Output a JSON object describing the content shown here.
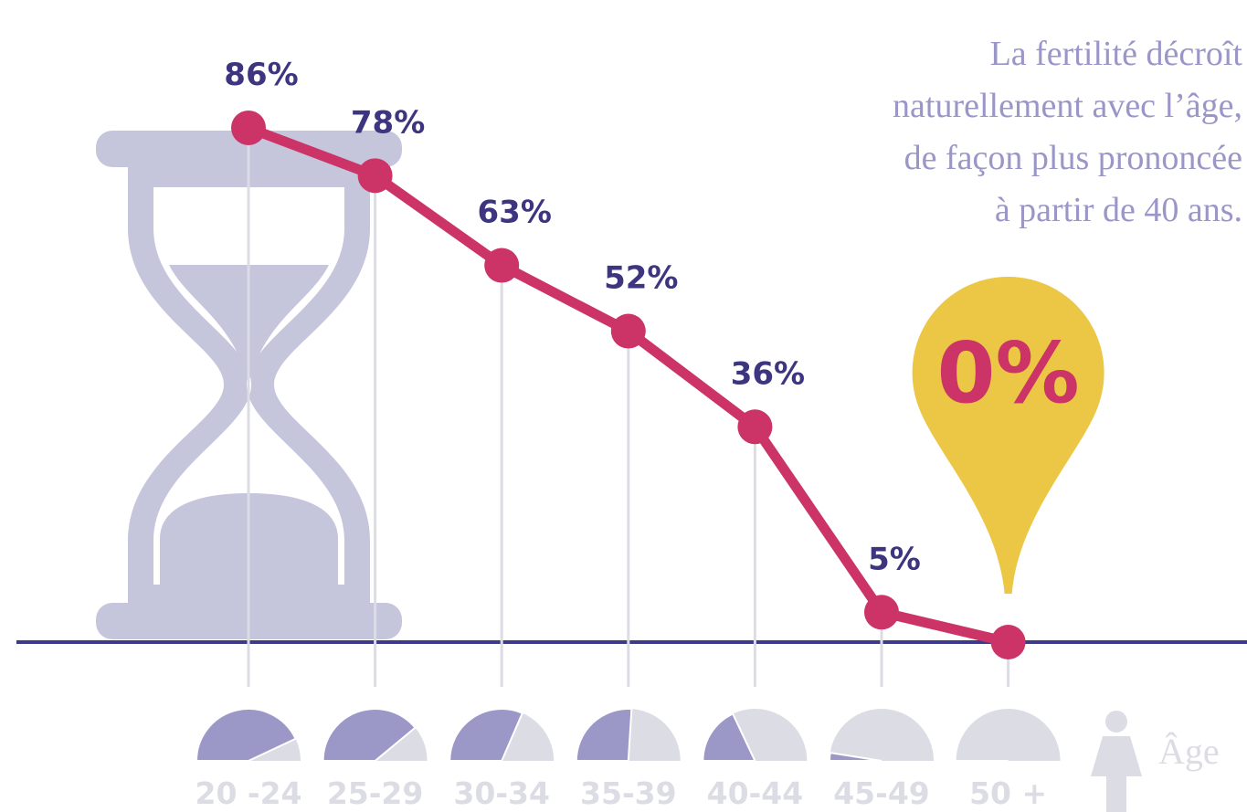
{
  "chart_data": {
    "type": "line",
    "annotation": [
      "La fertilité décroît",
      "naturellement avec l’âge,",
      "de façon plus prononcée",
      "à partir de 40 ans."
    ],
    "categories": [
      "20 -24",
      "25-29",
      "30-34",
      "35-39",
      "40-44",
      "45-49",
      "50 +"
    ],
    "values": [
      86,
      78,
      63,
      52,
      36,
      5,
      0
    ],
    "value_labels": [
      "86%",
      "78%",
      "63%",
      "52%",
      "36%",
      "5%",
      "0%"
    ],
    "color": "#cc3366",
    "x_label": "Âge"
  }
}
